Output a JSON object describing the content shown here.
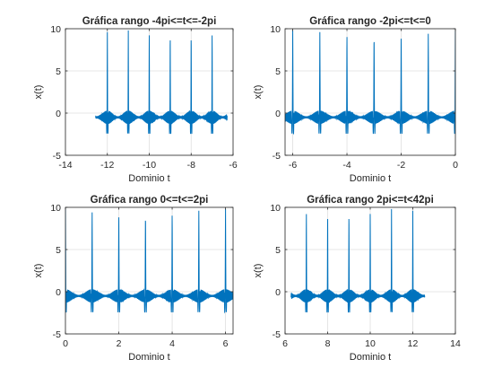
{
  "colors": {
    "line": "#0072BD",
    "grid": "#dfdfdf",
    "axis": "#262626",
    "background": "#ffffff"
  },
  "chart_data": [
    {
      "type": "line",
      "title": "Gráfica rango -4pi<=t<=-2pi",
      "xlabel": "Dominio t",
      "ylabel": "x(t)",
      "xlim": [
        -14,
        -6
      ],
      "ylim": [
        -5,
        10
      ],
      "xticks": [
        -14,
        -12,
        -10,
        -8,
        -6
      ],
      "xtick_labels": [
        "-14",
        "-12",
        "-10",
        "-8",
        "-6"
      ],
      "yticks": [
        -5,
        0,
        5,
        10
      ],
      "ytick_labels": [
        "-5",
        "0",
        "5",
        "10"
      ],
      "grid": true,
      "series": [
        {
          "t_start": -12.566,
          "t_end": -6.283,
          "period": 1.0,
          "first_peak": -12.0,
          "peak": 10,
          "baseline": -0.5,
          "ripple": 0.8,
          "trough": -2.7
        }
      ]
    },
    {
      "type": "line",
      "title": "Gráfica rango -2pi<=t<=0",
      "xlabel": "Dominio t",
      "ylabel": "x(t)",
      "xlim": [
        -6.283,
        0
      ],
      "ylim": [
        -5,
        10
      ],
      "xticks": [
        -6,
        -4,
        -2,
        0
      ],
      "xtick_labels": [
        "-6",
        "-4",
        "-2",
        "0"
      ],
      "yticks": [
        -5,
        0,
        5,
        10
      ],
      "ytick_labels": [
        "-5",
        "0",
        "5",
        "10"
      ],
      "grid": true,
      "series": [
        {
          "t_start": -6.283,
          "t_end": 0,
          "period": 1.0,
          "first_peak": -6.0,
          "peak": 10,
          "baseline": -0.5,
          "ripple": 0.8,
          "trough": -2.7
        }
      ]
    },
    {
      "type": "line",
      "title": "Gráfica rango 0<=t<=2pi",
      "xlabel": "Dominio t",
      "ylabel": "x(t)",
      "xlim": [
        0,
        6.283
      ],
      "ylim": [
        -5,
        10
      ],
      "xticks": [
        0,
        2,
        4,
        6
      ],
      "xtick_labels": [
        "0",
        "2",
        "4",
        "6"
      ],
      "yticks": [
        -5,
        0,
        5,
        10
      ],
      "ytick_labels": [
        "-5",
        "0",
        "5",
        "10"
      ],
      "grid": true,
      "series": [
        {
          "t_start": 0,
          "t_end": 6.283,
          "period": 1.0,
          "first_peak": 0.0,
          "peak": 10,
          "baseline": -0.5,
          "ripple": 0.8,
          "trough": -2.7
        }
      ]
    },
    {
      "type": "line",
      "title": "Gráfica rango 2pi<=t<42pi",
      "xlabel": "Dominio t",
      "ylabel": "x(t)",
      "xlim": [
        6,
        14
      ],
      "ylim": [
        -5,
        10
      ],
      "xticks": [
        6,
        8,
        10,
        12,
        14
      ],
      "xtick_labels": [
        "6",
        "8",
        "10",
        "12",
        "14"
      ],
      "yticks": [
        -5,
        0,
        5,
        10
      ],
      "ytick_labels": [
        "-5",
        "0",
        "5",
        "10"
      ],
      "grid": true,
      "series": [
        {
          "t_start": 6.283,
          "t_end": 12.566,
          "period": 1.0,
          "first_peak": 7.0,
          "peak": 10,
          "baseline": -0.5,
          "ripple": 0.8,
          "trough": -2.7
        }
      ]
    }
  ]
}
